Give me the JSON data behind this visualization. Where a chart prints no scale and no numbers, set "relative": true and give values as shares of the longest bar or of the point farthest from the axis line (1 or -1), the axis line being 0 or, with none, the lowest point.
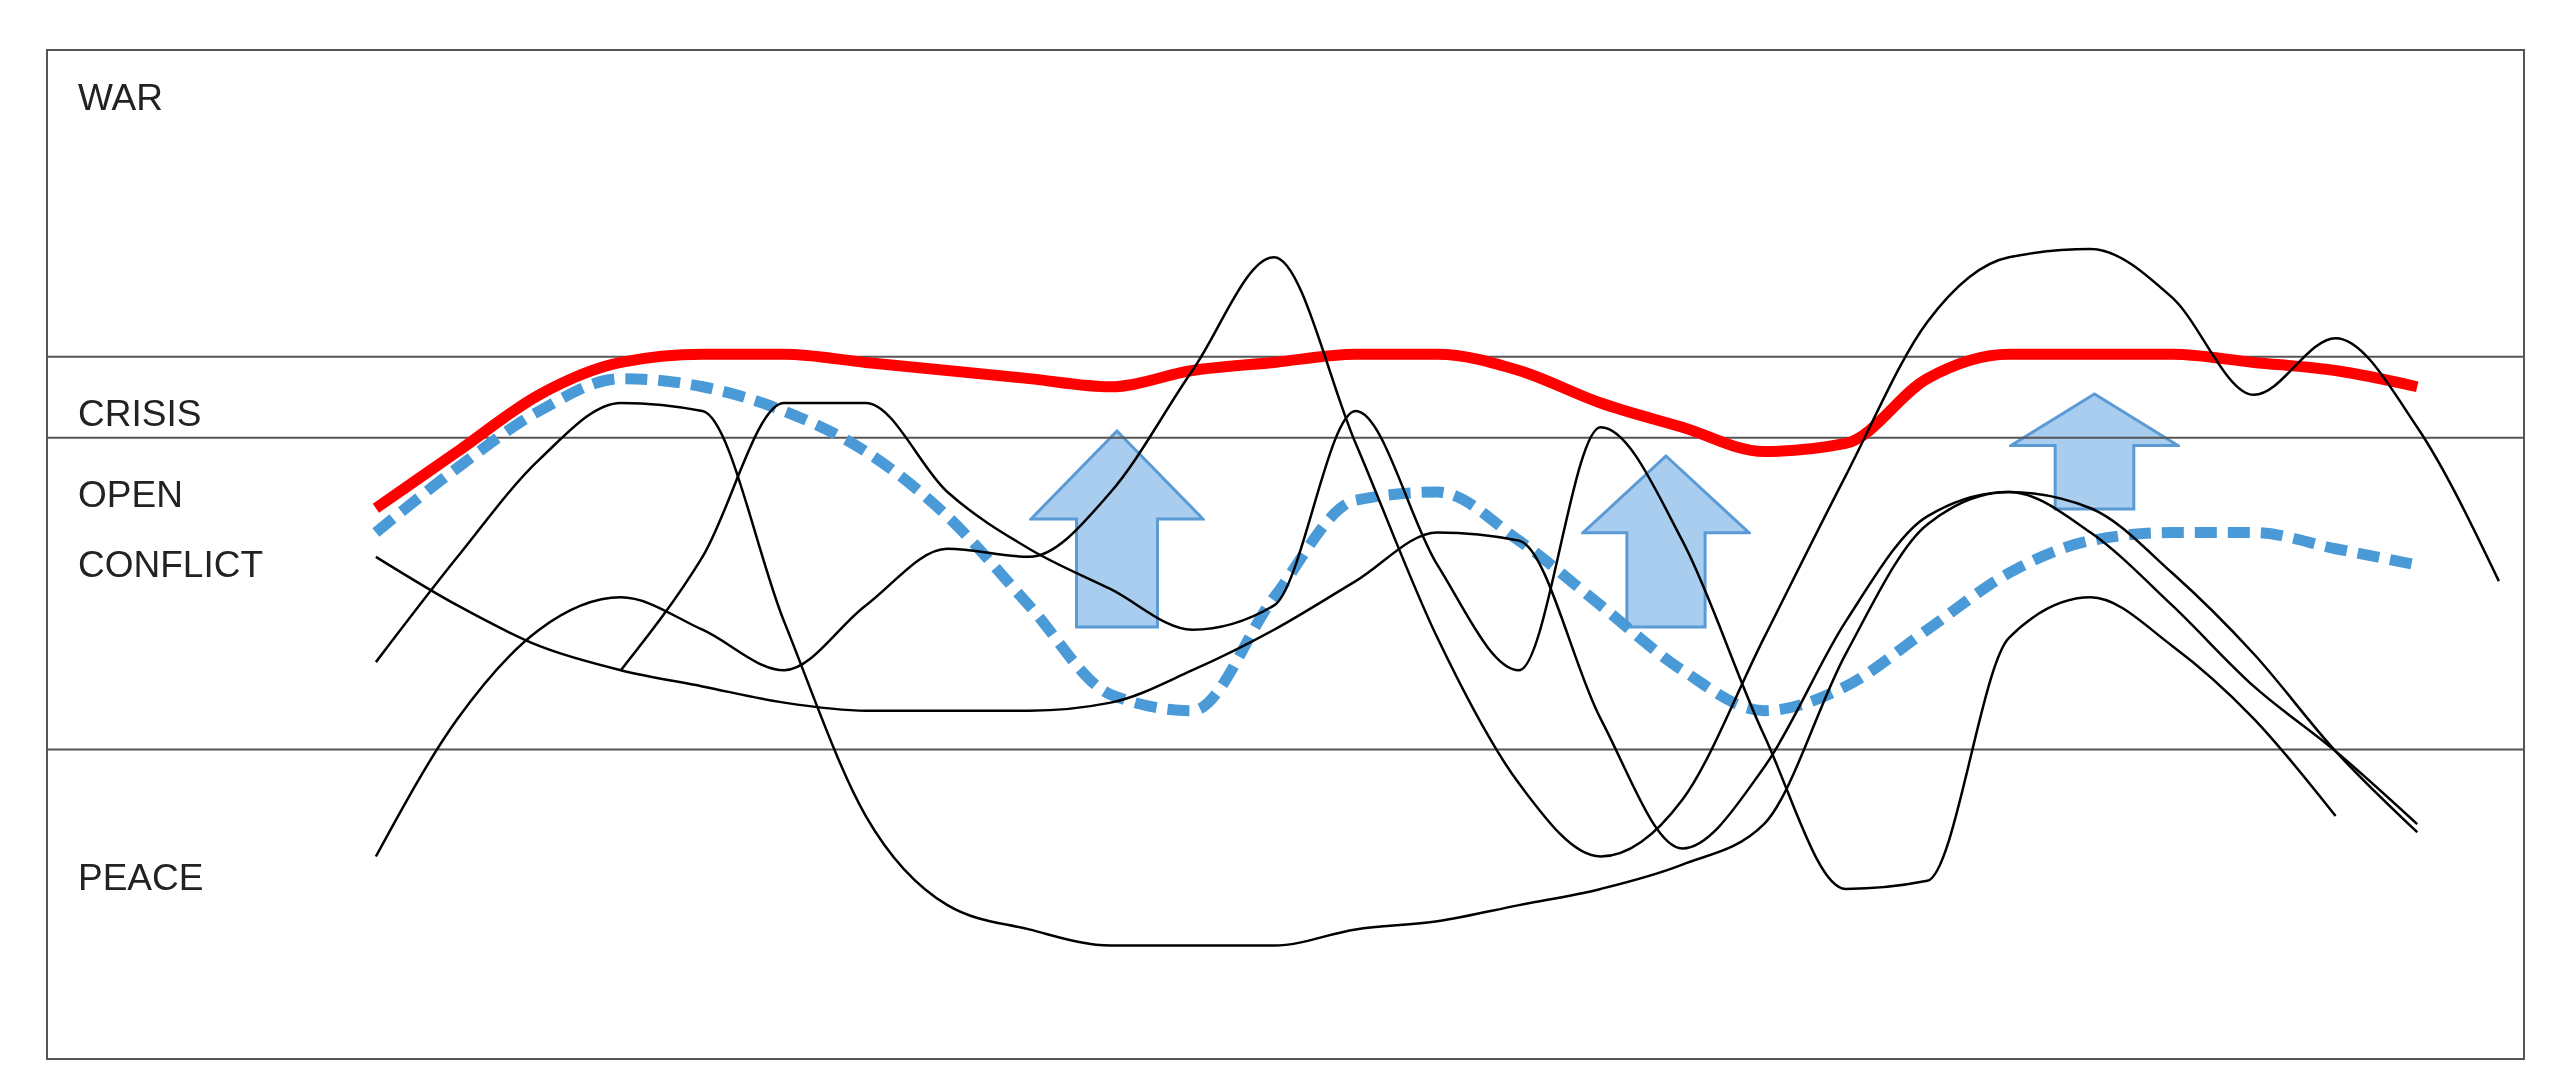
{
  "chart_data": {
    "type": "line",
    "relative": true,
    "categories": [
      null,
      null,
      null,
      null,
      null,
      null,
      null,
      null,
      null,
      null,
      null,
      null,
      null,
      null,
      null,
      null,
      null,
      null,
      null,
      null,
      null,
      null,
      null,
      null,
      null,
      null,
      null
    ],
    "series": [
      {
        "color": "#ff0000",
        "values": [
          0.68,
          0.75,
          0.82,
          0.86,
          0.87,
          0.87,
          0.86,
          0.85,
          0.84,
          0.83,
          0.85,
          0.86,
          0.87,
          0.87,
          0.85,
          0.81,
          0.78,
          0.75,
          0.76,
          0.84,
          0.87,
          0.87,
          0.87,
          0.86,
          0.85,
          0.83,
          null
        ]
      },
      {
        "color": "#4a9ad8",
        "line_style": "dashed",
        "values": [
          0.65,
          0.73,
          0.8,
          0.84,
          0.83,
          0.8,
          0.75,
          0.67,
          0.56,
          0.45,
          0.43,
          0.57,
          0.69,
          0.7,
          0.64,
          0.56,
          0.48,
          0.43,
          0.46,
          0.53,
          0.6,
          0.64,
          0.65,
          0.65,
          0.63,
          0.61,
          null
        ]
      },
      {
        "color": "#000000",
        "values": [
          0.62,
          0.56,
          0.51,
          0.48,
          0.46,
          0.44,
          0.43,
          0.43,
          0.43,
          0.44,
          0.48,
          0.53,
          0.59,
          0.65,
          0.64,
          0.42,
          0.26,
          0.36,
          0.54,
          0.67,
          0.7,
          0.65,
          0.56,
          0.46,
          0.38,
          0.29,
          null
        ]
      },
      {
        "color": "#000000",
        "values": [
          0.49,
          0.62,
          0.74,
          0.81,
          0.8,
          0.54,
          0.3,
          0.19,
          0.16,
          0.14,
          0.14,
          0.14,
          0.16,
          0.17,
          0.19,
          0.21,
          0.24,
          0.29,
          0.5,
          0.66,
          0.7,
          0.68,
          0.6,
          0.5,
          0.38,
          0.28,
          null
        ]
      },
      {
        "color": "#000000",
        "values": [
          0.25,
          0.42,
          0.53,
          0.57,
          0.53,
          0.48,
          0.56,
          0.63,
          0.62,
          0.7,
          0.85,
          0.99,
          0.76,
          0.52,
          0.34,
          0.25,
          0.32,
          0.52,
          0.72,
          0.91,
          0.99,
          1,
          0.94,
          0.82,
          0.89,
          0.78,
          0.59
        ]
      },
      {
        "color": "#000000",
        "values": [
          null,
          null,
          null,
          0.48,
          0.62,
          0.81,
          0.81,
          0.7,
          0.63,
          0.58,
          0.53,
          0.56,
          0.8,
          0.61,
          0.48,
          0.78,
          0.64,
          0.4,
          0.21,
          0.22,
          0.52,
          0.57,
          0.51,
          0.42,
          0.3,
          null,
          null
        ]
      }
    ],
    "ref_lines": [
      {
        "axis": "y",
        "value": 0.382
      },
      {
        "axis": "y",
        "value": 0.767
      },
      {
        "axis": "y",
        "value": 0.867
      }
    ],
    "annotations": [
      "WAR",
      "CRISIS",
      "OPEN CONFLICT",
      "PEACE"
    ],
    "legend": false,
    "grid": false,
    "marker": "none"
  }
}
